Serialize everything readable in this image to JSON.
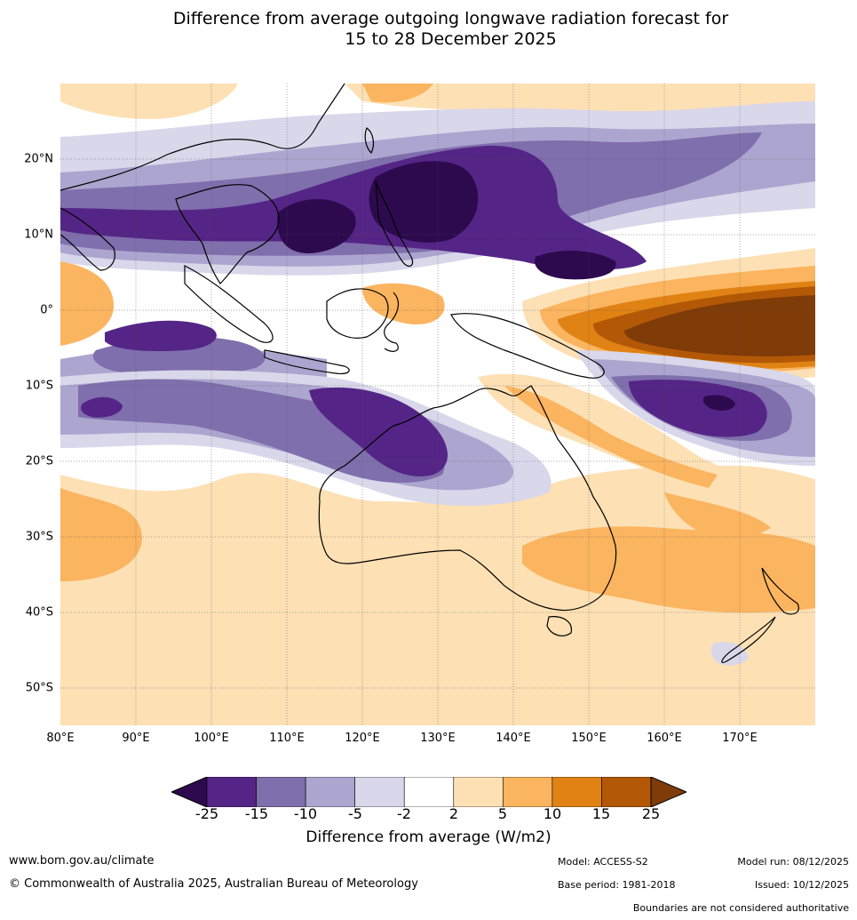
{
  "title": {
    "line1": "Difference from average outgoing longwave radiation forecast for",
    "line2": "15 to 28 December 2025"
  },
  "map": {
    "lat_labels": [
      "20°N",
      "10°N",
      "0°",
      "10°S",
      "20°S",
      "30°S",
      "40°S",
      "50°S"
    ],
    "lon_labels": [
      "80°E",
      "90°E",
      "100°E",
      "110°E",
      "120°E",
      "130°E",
      "140°E",
      "150°E",
      "160°E",
      "170°E"
    ]
  },
  "colorbar": {
    "ticks": [
      "-25",
      "-15",
      "-10",
      "-5",
      "-2",
      "2",
      "5",
      "10",
      "15",
      "25"
    ],
    "colors": [
      "#2d0a4e",
      "#542586",
      "#7f6fac",
      "#aca5cf",
      "#d9d7ea",
      "#ffffff",
      "#fde0b4",
      "#fbb45f",
      "#e08214",
      "#b35806",
      "#7f3b08"
    ],
    "label": "Difference from average (W/m2)"
  },
  "footer": {
    "website": "www.bom.gov.au/climate",
    "copyright": "© Commonwealth of Australia 2025, Australian Bureau of Meteorology",
    "model": "Model: ACCESS-S2",
    "base_period": "Base period: 1981-2018",
    "model_run": "Model run: 08/12/2025",
    "issued": "Issued: 10/12/2025",
    "disclaimer": "Boundaries are not considered authoritative"
  }
}
